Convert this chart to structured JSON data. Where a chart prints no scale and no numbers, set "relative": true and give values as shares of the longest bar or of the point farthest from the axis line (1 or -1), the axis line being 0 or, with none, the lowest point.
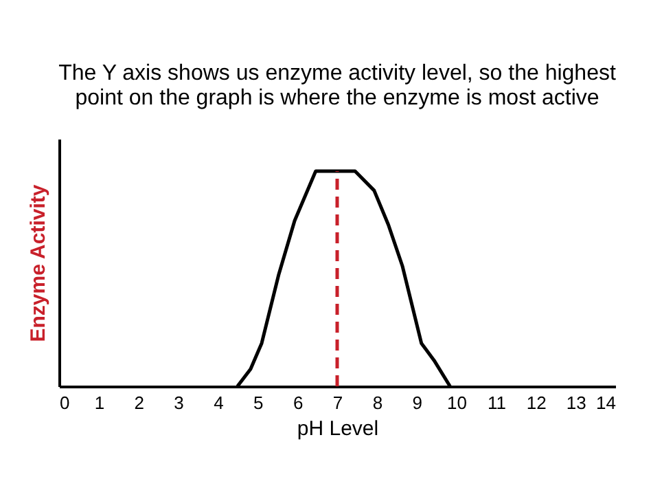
{
  "chart_data": {
    "type": "line",
    "title": "The Y axis shows us enzyme activity level, so the highest\npoint on the graph is where the enzyme is most active",
    "xlabel": "pH Level",
    "ylabel": "Enzyme Activity",
    "relative": true,
    "x": [
      4.49,
      4.82,
      5.1,
      5.53,
      5.93,
      6.46,
      6.97,
      7.45,
      7.93,
      8.29,
      8.64,
      9.12,
      9.44,
      9.84
    ],
    "series": [
      {
        "color": "#000000",
        "values": [
          0,
          0.08,
          0.2,
          0.52,
          0.77,
          1,
          1,
          1,
          0.91,
          0.75,
          0.56,
          0.2,
          0.12,
          0
        ]
      }
    ],
    "xlim": [
      0,
      14
    ],
    "xticks": [
      0,
      1,
      2,
      3,
      4,
      5,
      6,
      7,
      8,
      9,
      10,
      11,
      12,
      13,
      14
    ],
    "ref_lines": [
      {
        "axis": "x",
        "value": 7,
        "color": "#c8202a",
        "line_style": "dashed"
      }
    ],
    "grid": false,
    "tick_labels": "x",
    "marker": "none",
    "line_style": "solid"
  }
}
